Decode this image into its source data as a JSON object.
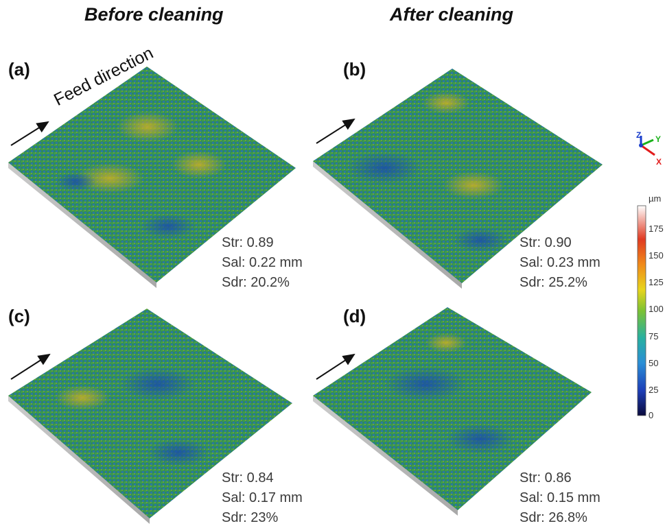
{
  "columns": {
    "left_title": "Before cleaning",
    "right_title": "After cleaning"
  },
  "feed_label": "Feed direction",
  "panels": [
    {
      "label": "(a)",
      "str": "Str: 0.89",
      "sal": "Sal: 0.22 mm",
      "sdr": "Sdr: 20.2%"
    },
    {
      "label": "(b)",
      "str": "Str: 0.90",
      "sal": "Sal: 0.23 mm",
      "sdr": "Sdr: 25.2%"
    },
    {
      "label": "(c)",
      "str": "Str: 0.84",
      "sal": "Sal: 0.17 mm",
      "sdr": "Sdr: 23%"
    },
    {
      "label": "(d)",
      "str": "Str: 0.86",
      "sal": "Sal: 0.15 mm",
      "sdr": "Sdr: 26.8%"
    }
  ],
  "colorbar": {
    "unit": "µm",
    "ticks": [
      "175",
      "150",
      "125",
      "100",
      "75",
      "50",
      "25",
      "0"
    ]
  },
  "axes": {
    "x": "X",
    "y": "Y",
    "z": "Z"
  },
  "colors": {
    "arrow": "#111111",
    "axis_x": "#e21b1b",
    "axis_y": "#1bb21b",
    "axis_z": "#1b3fcc"
  }
}
